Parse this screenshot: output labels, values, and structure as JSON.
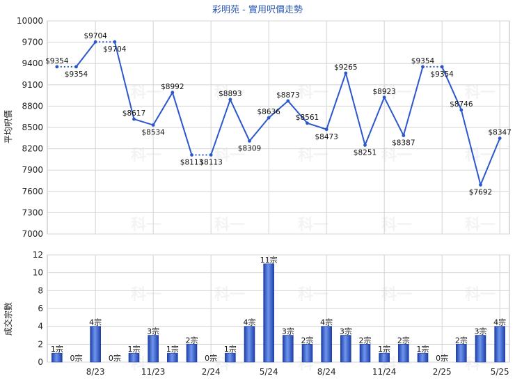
{
  "chart_data": [
    {
      "type": "line",
      "title": "彩明苑 - 實用呎價走勢",
      "ylabel": "平均呎價",
      "ylim": [
        7000,
        10000
      ],
      "yticks": [
        7000,
        7300,
        7600,
        7900,
        8200,
        8500,
        8800,
        9100,
        9400,
        9700,
        10000
      ],
      "grid": true,
      "x": [
        "6/23",
        "7/23",
        "8/23",
        "9/23",
        "10/23",
        "11/23",
        "12/23",
        "1/24",
        "2/24",
        "3/24",
        "4/24",
        "5/24",
        "6/24",
        "7/24",
        "8/24",
        "9/24",
        "10/24",
        "11/24",
        "12/24",
        "1/25",
        "2/25",
        "3/25",
        "4/25",
        "5/25"
      ],
      "values": [
        9354,
        9354,
        9704,
        9704,
        8617,
        8534,
        8992,
        8113,
        8113,
        8893,
        8309,
        8636,
        8873,
        8561,
        8473,
        9265,
        8251,
        8923,
        8387,
        9354,
        9354,
        8746,
        7692,
        8347
      ],
      "labels": [
        "$9354",
        "$9354",
        "$9704",
        "$9704",
        "$8617",
        "$8534",
        "$8992",
        "$8113",
        "$8113",
        "$8893",
        "$8309",
        "$8636",
        "$8873",
        "$8561",
        "$8473",
        "$9265",
        "$8251",
        "$8923",
        "$8387",
        "$9354",
        "$9354",
        "$8746",
        "$7692",
        "$8347"
      ],
      "carried": [
        false,
        true,
        false,
        true,
        false,
        false,
        false,
        false,
        true,
        false,
        false,
        false,
        false,
        false,
        false,
        false,
        false,
        false,
        false,
        false,
        true,
        false,
        false,
        false
      ],
      "color": "#2b57cc"
    },
    {
      "type": "bar",
      "ylabel": "成交宗數",
      "ylim": [
        0,
        12
      ],
      "yticks": [
        0,
        2,
        4,
        6,
        8,
        10,
        12
      ],
      "grid": true,
      "values": [
        1,
        0,
        4,
        0,
        1,
        3,
        1,
        2,
        0,
        1,
        4,
        11,
        3,
        2,
        4,
        3,
        2,
        1,
        2,
        1,
        0,
        2,
        3,
        4
      ],
      "labels": [
        "1宗",
        "0宗",
        "4宗",
        "0宗",
        "1宗",
        "3宗",
        "1宗",
        "2宗",
        "0宗",
        "1宗",
        "4宗",
        "11宗",
        "3宗",
        "2宗",
        "4宗",
        "3宗",
        "2宗",
        "1宗",
        "2宗",
        "1宗",
        "0宗",
        "2宗",
        "3宗",
        "4宗"
      ],
      "x_tick_labels": [
        "8/23",
        "11/23",
        "2/24",
        "5/24",
        "8/24",
        "11/24",
        "2/25",
        "5/25"
      ],
      "x_tick_indices": [
        2,
        5,
        8,
        11,
        14,
        17,
        20,
        23
      ],
      "color": "#2f5bd0"
    }
  ],
  "watermark": "科一"
}
